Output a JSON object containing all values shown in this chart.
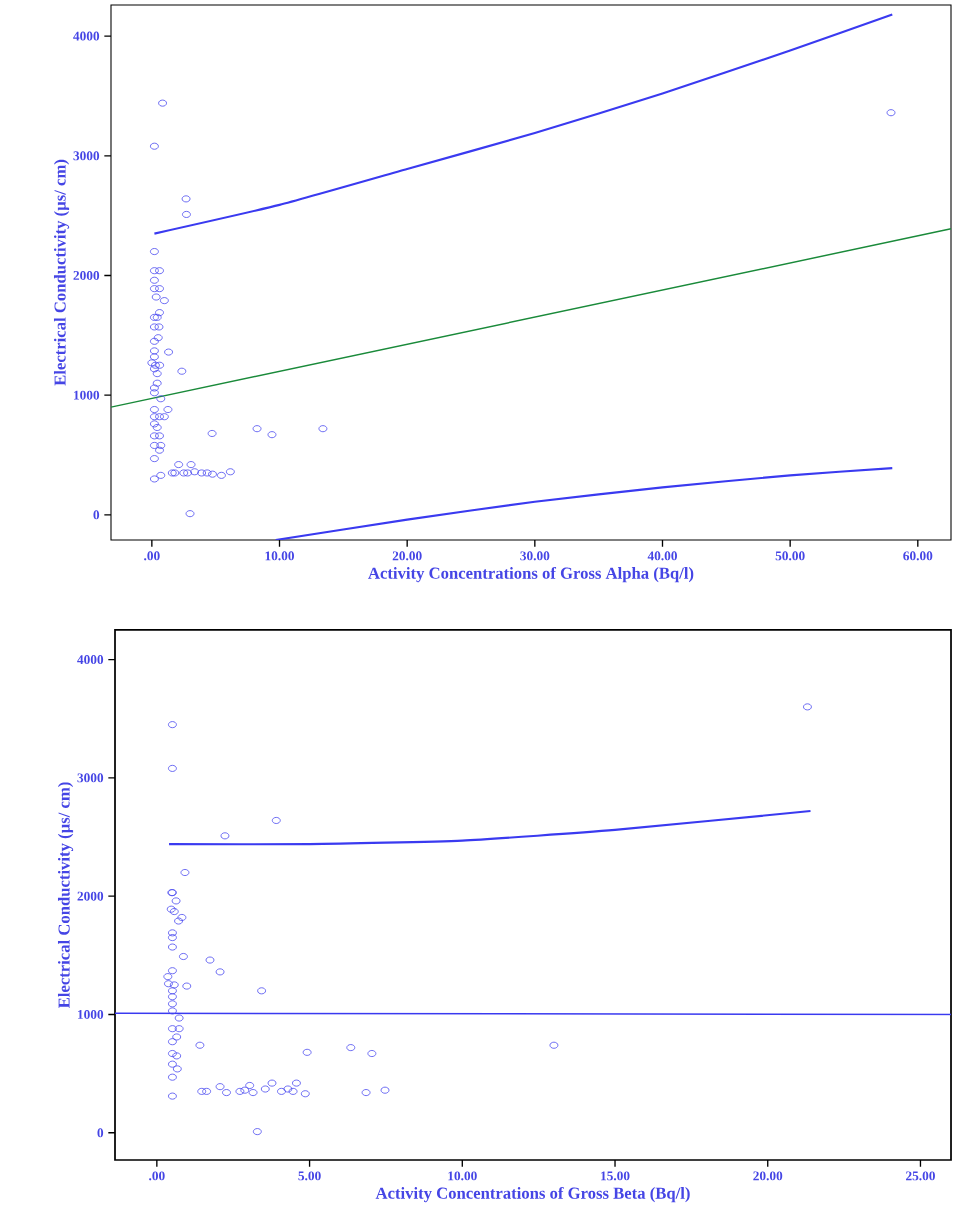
{
  "chart_data": [
    {
      "type": "scatter",
      "xlabel": "Activity Concentrations of Gross Alpha (Bq/l)",
      "ylabel": "Electrical Conductivity (µs/ cm)",
      "xlim": [
        -3.2,
        62.6
      ],
      "ylim": [
        -210,
        4260
      ],
      "xticks": [
        {
          "value": 0,
          "label": ".00"
        },
        {
          "value": 10,
          "label": "10.00"
        },
        {
          "value": 20,
          "label": "20.00"
        },
        {
          "value": 30,
          "label": "30.00"
        },
        {
          "value": 40,
          "label": "40.00"
        },
        {
          "value": 50,
          "label": "50.00"
        },
        {
          "value": 60,
          "label": "60.00"
        }
      ],
      "yticks": [
        0,
        1000,
        2000,
        3000,
        4000
      ],
      "series": [
        {
          "marker": "circle",
          "color": "#4a4af0",
          "x": [
            0.84,
            0.2,
            2.68,
            2.71,
            0.2,
            0.2,
            0.6,
            0.2,
            0.2,
            0.6,
            0.34,
            0.98,
            0.6,
            0.2,
            0.42,
            0.2,
            0.56,
            0.5,
            0.2,
            0.2,
            1.31,
            0.2,
            0.0,
            0.28,
            0.61,
            0.2,
            0.42,
            0.42,
            2.35,
            0.2,
            0.2,
            0.7,
            0.2,
            1.26,
            0.2,
            0.6,
            0.98,
            0.2,
            0.42,
            0.2,
            0.6,
            0.2,
            0.7,
            0.6,
            0.2,
            4.72,
            8.24,
            9.41,
            13.4,
            0.2,
            0.7,
            1.6,
            2.1,
            2.5,
            3.07,
            3.35,
            3.9,
            4.33,
            4.75,
            5.45,
            6.15,
            1.8,
            2.8,
            2.99,
            57.9
          ],
          "values": [
            3440,
            3080,
            2640,
            2510,
            2200,
            2040,
            2040,
            1960,
            1890,
            1890,
            1820,
            1790,
            1690,
            1650,
            1650,
            1570,
            1570,
            1480,
            1450,
            1370,
            1360,
            1320,
            1270,
            1250,
            1250,
            1220,
            1180,
            1100,
            1200,
            1060,
            1020,
            970,
            880,
            880,
            820,
            820,
            820,
            760,
            730,
            660,
            660,
            580,
            580,
            540,
            470,
            680,
            720,
            670,
            720,
            300,
            330,
            350,
            420,
            350,
            420,
            360,
            350,
            350,
            340,
            330,
            360,
            350,
            350,
            10,
            3360
          ]
        },
        {
          "type": "line",
          "marker": "none",
          "color": "#1a8a3a",
          "x": [
            -3.2,
            62.6
          ],
          "values": [
            900,
            2390
          ]
        },
        {
          "type": "line",
          "marker": "none",
          "color": "#3a3af0",
          "x": [
            0.2,
            10,
            20,
            30,
            40,
            50,
            58
          ],
          "values": [
            2350,
            2590,
            2890,
            3190,
            3520,
            3880,
            4180
          ]
        },
        {
          "type": "line",
          "marker": "none",
          "color": "#3a3af0",
          "x": [
            9.7,
            20,
            30,
            40,
            50,
            58
          ],
          "values": [
            -210,
            -40,
            110,
            230,
            330,
            390
          ]
        }
      ]
    },
    {
      "type": "scatter",
      "xlabel": "Activity Concentrations of Gross Beta (Bq/l)",
      "ylabel": "Electrical Conductivity (µs/ cm)",
      "xlim": [
        -1.37,
        26.0
      ],
      "ylim": [
        -230,
        4250
      ],
      "xticks": [
        {
          "value": 0,
          "label": ".00"
        },
        {
          "value": 5,
          "label": "5.00"
        },
        {
          "value": 10,
          "label": "10.00"
        },
        {
          "value": 15,
          "label": "15.00"
        },
        {
          "value": 20,
          "label": "20.00"
        },
        {
          "value": 25,
          "label": "25.00"
        }
      ],
      "yticks": [
        0,
        1000,
        2000,
        3000,
        4000
      ],
      "series": [
        {
          "marker": "circle",
          "color": "#4a4af0",
          "x": [
            0.51,
            0.51,
            3.91,
            2.23,
            0.92,
            0.51,
            0.49,
            0.63,
            0.47,
            0.57,
            0.82,
            0.71,
            0.51,
            0.51,
            0.51,
            0.87,
            1.74,
            2.07,
            0.51,
            0.36,
            0.38,
            0.57,
            0.51,
            0.51,
            0.51,
            0.51,
            0.98,
            3.43,
            0.73,
            0.51,
            0.73,
            0.65,
            0.51,
            1.41,
            0.51,
            0.65,
            0.51,
            0.67,
            0.51,
            0.51,
            4.92,
            6.35,
            7.04,
            3.29,
            1.47,
            1.63,
            2.07,
            2.28,
            2.72,
            2.88,
            3.04,
            3.15,
            3.55,
            3.77,
            4.08,
            4.29,
            4.57,
            4.46,
            4.86,
            6.85,
            7.47,
            13.0,
            21.3
          ],
          "values": [
            3450,
            3080,
            2640,
            2510,
            2200,
            2030,
            2030,
            1960,
            1890,
            1870,
            1820,
            1790,
            1690,
            1650,
            1570,
            1490,
            1460,
            1360,
            1370,
            1320,
            1260,
            1250,
            1200,
            1150,
            1090,
            1030,
            1240,
            1200,
            970,
            880,
            880,
            810,
            770,
            740,
            670,
            650,
            580,
            540,
            470,
            310,
            680,
            720,
            670,
            10,
            350,
            350,
            390,
            340,
            350,
            360,
            400,
            340,
            370,
            420,
            350,
            370,
            420,
            350,
            330,
            340,
            360,
            740,
            3600
          ]
        },
        {
          "type": "line",
          "marker": "none",
          "color": "#3a3af0",
          "x": [
            -1.37,
            26.0
          ],
          "values": [
            1010,
            1000
          ]
        },
        {
          "type": "line",
          "marker": "none",
          "color": "#3a3af0",
          "x": [
            0.4,
            5,
            10,
            15,
            21.4
          ],
          "values": [
            2440,
            2440,
            2470,
            2560,
            2720
          ]
        }
      ]
    }
  ]
}
